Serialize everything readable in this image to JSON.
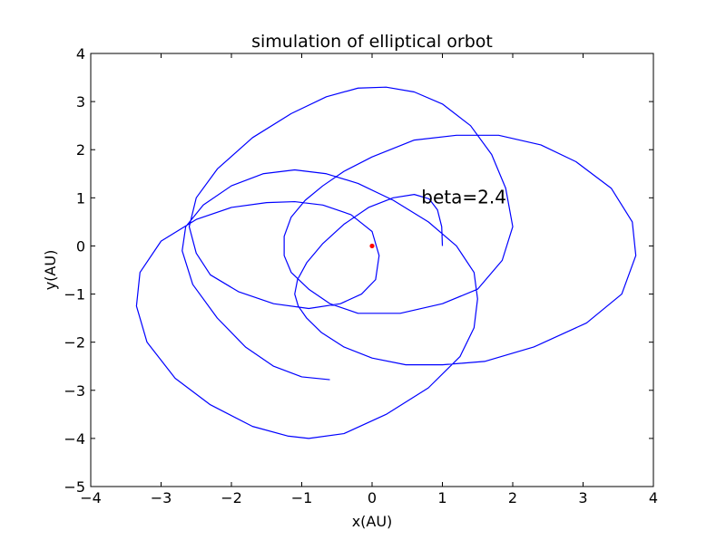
{
  "chart_data": {
    "type": "line",
    "title": "simulation of elliptical orbot",
    "xlabel": "x(AU)",
    "ylabel": "y(AU)",
    "xlim": [
      -4,
      4
    ],
    "ylim": [
      -5,
      4
    ],
    "xticks": [
      -4,
      -3,
      -2,
      -1,
      0,
      1,
      2,
      3,
      4
    ],
    "yticks": [
      -5,
      -4,
      -3,
      -2,
      -1,
      0,
      1,
      2,
      3,
      4
    ],
    "xtick_labels": [
      "−4",
      "−3",
      "−2",
      "−1",
      "0",
      "1",
      "2",
      "3",
      "4"
    ],
    "ytick_labels": [
      "−5",
      "−4",
      "−3",
      "−2",
      "−1",
      "0",
      "1",
      "2",
      "3",
      "4"
    ],
    "grid": false,
    "annotation": {
      "text": "beta=2.4",
      "x": 0.7,
      "y": 0.88
    },
    "series": [
      {
        "color": "#0000ff",
        "x": [
          1.0,
          0.99,
          0.93,
          0.81,
          0.6,
          0.3,
          -0.05,
          -0.4,
          -0.7,
          -0.93,
          -1.06,
          -1.1,
          -1.05,
          -0.93,
          -0.72,
          -0.4,
          0.0,
          0.48,
          1.0,
          1.6,
          2.3,
          3.05,
          3.55,
          3.75,
          3.7,
          3.4,
          2.9,
          2.4,
          1.8,
          1.2,
          0.6,
          0.0,
          -0.4,
          -0.7,
          -0.95,
          -1.15,
          -1.25,
          -1.25,
          -1.15,
          -0.9,
          -0.6,
          -0.2,
          0.4,
          1.0,
          1.5,
          1.85,
          2.0,
          1.9,
          1.7,
          1.4,
          1.0,
          0.6,
          0.2,
          -0.2,
          -0.65,
          -1.15,
          -1.7,
          -2.2,
          -2.5,
          -2.6,
          -2.5,
          -2.3,
          -1.9,
          -1.4,
          -0.9,
          -0.45,
          -0.15,
          0.05,
          0.1,
          0.0,
          -0.3,
          -0.7,
          -1.1,
          -1.5,
          -2.0,
          -2.5,
          -3.0,
          -3.3,
          -3.35,
          -3.2,
          -2.8,
          -2.3,
          -1.7,
          -1.2,
          -0.9,
          -0.4,
          0.2,
          0.8,
          1.25,
          1.45,
          1.5,
          1.45,
          1.2,
          0.8,
          0.3,
          -0.2,
          -0.65,
          -1.1,
          -1.55,
          -2.0,
          -2.4,
          -2.65,
          -2.7,
          -2.55,
          -2.2,
          -1.8,
          -1.4,
          -1.0,
          -0.6
        ],
        "y": [
          0.0,
          0.4,
          0.75,
          0.98,
          1.07,
          1.0,
          0.8,
          0.45,
          0.05,
          -0.35,
          -0.7,
          -1.0,
          -1.25,
          -1.5,
          -1.8,
          -2.1,
          -2.33,
          -2.47,
          -2.47,
          -2.4,
          -2.1,
          -1.6,
          -1.0,
          -0.2,
          0.5,
          1.2,
          1.75,
          2.1,
          2.3,
          2.3,
          2.2,
          1.85,
          1.55,
          1.25,
          0.95,
          0.6,
          0.2,
          -0.2,
          -0.55,
          -0.9,
          -1.2,
          -1.4,
          -1.4,
          -1.2,
          -0.9,
          -0.3,
          0.4,
          1.2,
          1.9,
          2.5,
          2.95,
          3.2,
          3.3,
          3.28,
          3.1,
          2.75,
          2.25,
          1.6,
          1.0,
          0.4,
          -0.15,
          -0.6,
          -0.95,
          -1.2,
          -1.3,
          -1.2,
          -1.0,
          -0.7,
          -0.2,
          0.3,
          0.65,
          0.85,
          0.92,
          0.9,
          0.8,
          0.55,
          0.1,
          -0.55,
          -1.25,
          -2.0,
          -2.75,
          -3.3,
          -3.75,
          -3.95,
          -4.0,
          -3.9,
          -3.5,
          -2.95,
          -2.3,
          -1.7,
          -1.1,
          -0.55,
          0.0,
          0.5,
          0.95,
          1.3,
          1.5,
          1.58,
          1.5,
          1.25,
          0.85,
          0.4,
          -0.1,
          -0.8,
          -1.5,
          -2.1,
          -2.5,
          -2.72,
          -2.78
        ]
      },
      {
        "color": "#ff0000",
        "x": [
          0
        ],
        "y": [
          0
        ]
      }
    ]
  }
}
